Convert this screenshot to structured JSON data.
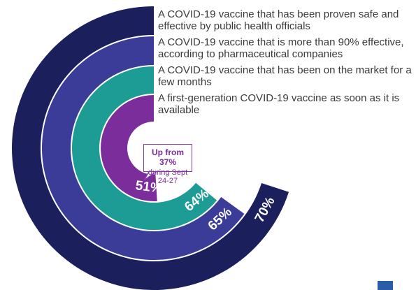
{
  "chart_data": {
    "type": "radial_bar",
    "series": [
      {
        "name": "A COVID-19 vaccine that has been proven safe and effective by public health officials",
        "color": "#1b1f5c",
        "value": 70,
        "value_label": "70%"
      },
      {
        "name": "A COVID-19 vaccine that is more than  90% effective, according to pharmaceutical companies",
        "color": "#3b3c98",
        "value": 65,
        "value_label": "65%"
      },
      {
        "name": "A COVID-19 vaccine that has been on the market for a few months",
        "color": "#1c9c94",
        "value": 64,
        "value_label": "64%"
      },
      {
        "name": "A first-generation COVID-19 vaccine as soon as it is available",
        "color": "#7b2d9b",
        "value": 51,
        "value_label": "51%"
      }
    ],
    "annotations": [
      "Up from 37%",
      "during Sept 24-27"
    ],
    "full_circle": 100
  }
}
